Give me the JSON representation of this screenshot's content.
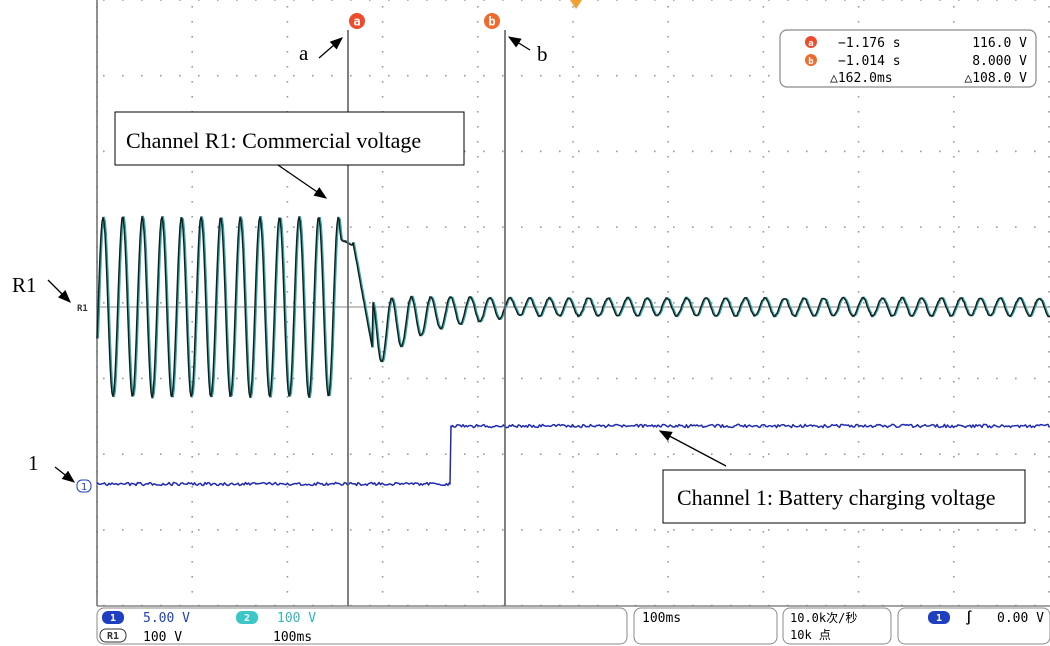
{
  "colors": {
    "grid_dot": "#9a9a9a",
    "trace_r1_main": "#1a1a1a",
    "trace_r1_shadow": "#2aa7a7",
    "trace_ch1": "#1f2bb0",
    "cursor_a_badge": "#ee4b2b",
    "cursor_b_badge": "#f06a2e",
    "trigger_marker": "#f0a030",
    "ch1_badge": "#1e3fc2",
    "ch2_badge": "#3cc6c8",
    "ch2_text": "#2fb7b9"
  },
  "labels": {
    "R1": "R1",
    "one": "1",
    "a": "a",
    "b": "b"
  },
  "callouts": {
    "r1": "Channel R1: Commercial voltage",
    "ch1": "Channel 1: Battery charging voltage"
  },
  "markers": {
    "cursor_a_glyph": "a",
    "cursor_b_glyph": "b",
    "r1_marker": "R1",
    "ch1_marker": "1"
  },
  "readout": {
    "a_time": "−1.176 s",
    "a_value": "116.0 V",
    "b_time": "−1.014 s",
    "b_value": "8.000 V",
    "delta_time": "△162.0ms",
    "delta_value": "△108.0 V"
  },
  "status": {
    "ch1_badge": "1",
    "ch1_scale": "5.00 V",
    "ch2_badge": "2",
    "ch2_scale": "100 V",
    "r1_badge": "R1",
    "r1_scale": "100 V",
    "r1_time": "100ms",
    "timebase": "100ms",
    "sample_rate": "10.0k次/秒",
    "record_length": "10k 点",
    "trig_badge": "1",
    "trig_slope": "∫",
    "trig_level": "0.00 V"
  }
}
